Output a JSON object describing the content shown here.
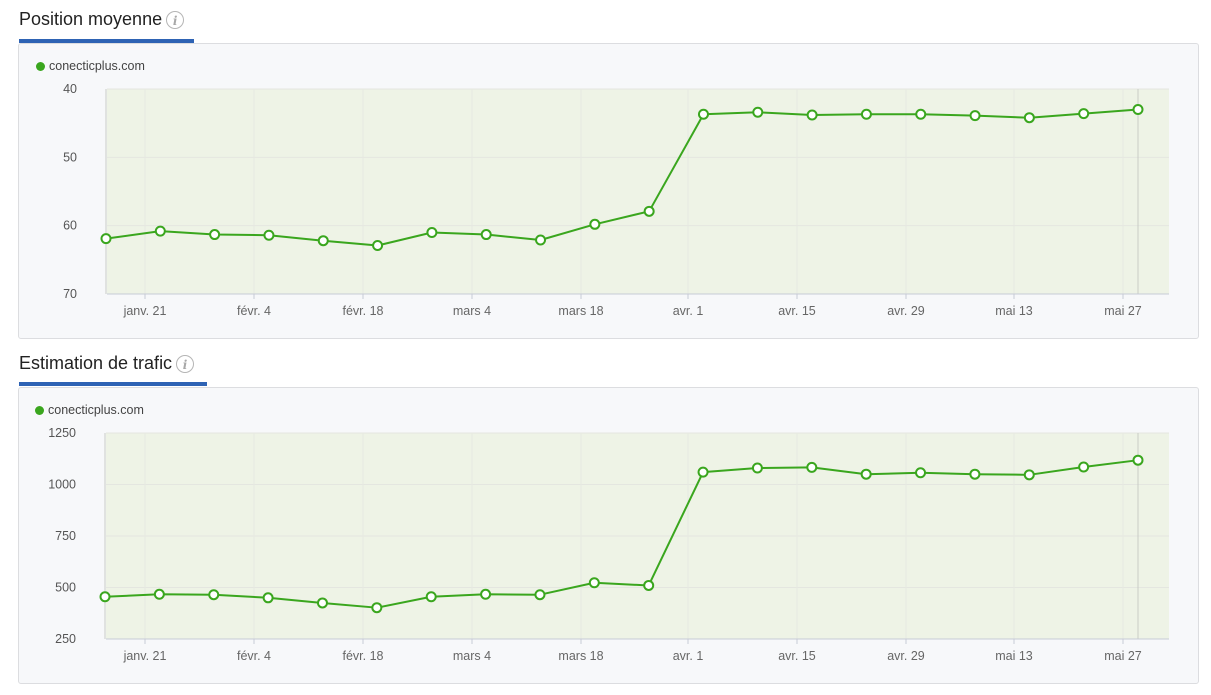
{
  "colors": {
    "series": "#3aa61e",
    "plot_bg": "#eef3e6",
    "accent": "#2e63b4"
  },
  "charts": [
    {
      "title": "Position moyenne",
      "info_icon": "info-icon",
      "legend_label": "conecticplus.com"
    },
    {
      "title": "Estimation de trafic",
      "info_icon": "info-icon",
      "legend_label": "conecticplus.com"
    }
  ],
  "chart_data": [
    {
      "type": "line",
      "title": "Position moyenne",
      "series": [
        {
          "name": "conecticplus.com",
          "values": [
            61.9,
            60.8,
            61.3,
            61.4,
            62.2,
            62.9,
            61.0,
            61.3,
            62.1,
            59.8,
            57.9,
            43.7,
            43.4,
            43.8,
            43.7,
            43.7,
            43.9,
            44.2,
            43.6,
            43.0
          ]
        }
      ],
      "x_tick_labels": [
        "janv. 21",
        "févr. 4",
        "févr. 18",
        "mars 4",
        "mars 18",
        "avr. 1",
        "avr. 15",
        "avr. 29",
        "mai 13",
        "mai 27"
      ],
      "yticks": [
        40,
        50,
        60,
        70
      ],
      "ylim": [
        40,
        70
      ],
      "y_reversed": true,
      "grid": true
    },
    {
      "type": "line",
      "title": "Estimation de trafic",
      "series": [
        {
          "name": "conecticplus.com",
          "values": [
            455,
            467,
            465,
            450,
            425,
            402,
            455,
            467,
            465,
            523,
            510,
            1060,
            1080,
            1083,
            1050,
            1057,
            1050,
            1047,
            1085,
            1118
          ]
        }
      ],
      "x_tick_labels": [
        "janv. 21",
        "févr. 4",
        "févr. 18",
        "mars 4",
        "mars 18",
        "avr. 1",
        "avr. 15",
        "avr. 29",
        "mai 13",
        "mai 27"
      ],
      "yticks": [
        250,
        500,
        750,
        1000,
        1250
      ],
      "ylim": [
        250,
        1250
      ],
      "y_reversed": false,
      "grid": true
    }
  ]
}
